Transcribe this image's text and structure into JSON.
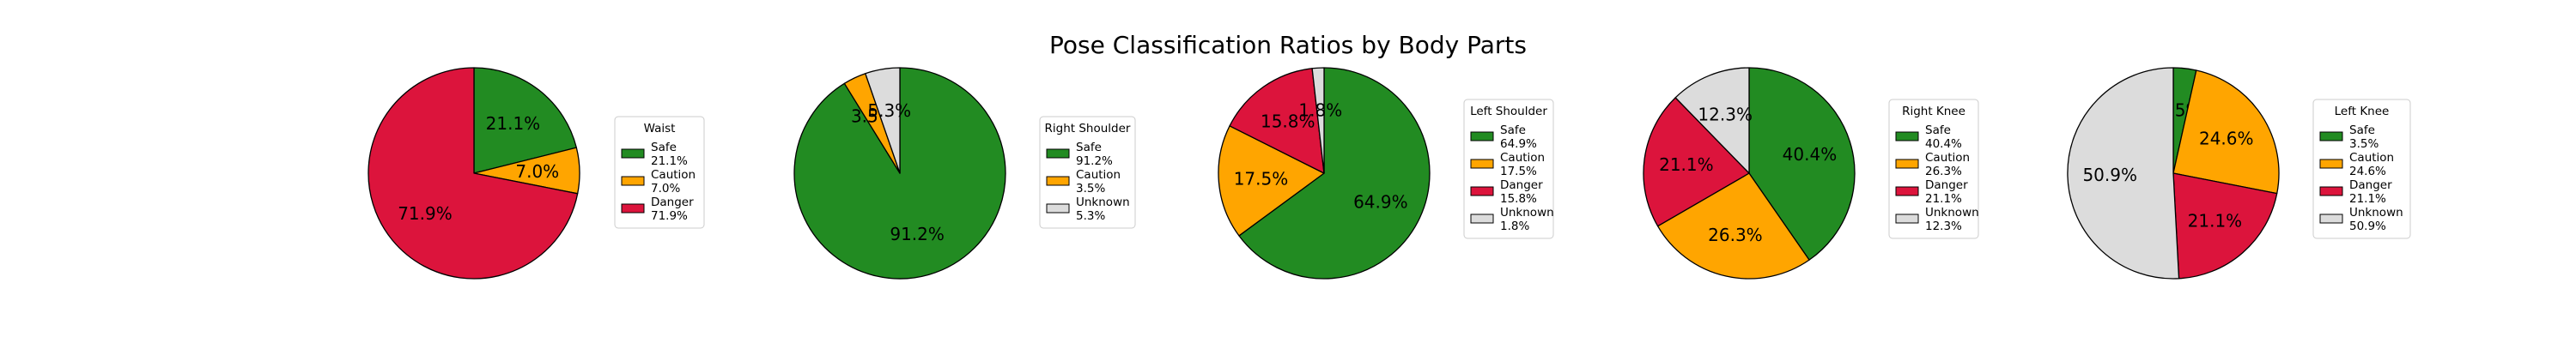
{
  "chart_data": {
    "type": "pie",
    "title": "Pose Classification Ratios by Body Parts",
    "colors": {
      "Safe": "#228b22",
      "Caution": "#ffa500",
      "Danger": "#dc143c",
      "Unknown": "#dcdcdc"
    },
    "start_angle_deg": 90,
    "direction": "clockwise",
    "charts": [
      {
        "name": "Waist",
        "slices": [
          {
            "label": "Safe",
            "value": 21.1,
            "pct_text": "21.1%"
          },
          {
            "label": "Caution",
            "value": 7.0,
            "pct_text": "7.0%"
          },
          {
            "label": "Danger",
            "value": 71.9,
            "pct_text": "71.9%"
          }
        ]
      },
      {
        "name": "Right Shoulder",
        "slices": [
          {
            "label": "Safe",
            "value": 91.2,
            "pct_text": "91.2%"
          },
          {
            "label": "Caution",
            "value": 3.5,
            "pct_text": "3.5%"
          },
          {
            "label": "Unknown",
            "value": 5.3,
            "pct_text": "5.3%"
          }
        ]
      },
      {
        "name": "Left Shoulder",
        "slices": [
          {
            "label": "Safe",
            "value": 64.9,
            "pct_text": "64.9%"
          },
          {
            "label": "Caution",
            "value": 17.5,
            "pct_text": "17.5%"
          },
          {
            "label": "Danger",
            "value": 15.8,
            "pct_text": "15.8%"
          },
          {
            "label": "Unknown",
            "value": 1.8,
            "pct_text": "1.8%"
          }
        ]
      },
      {
        "name": "Right Knee",
        "slices": [
          {
            "label": "Safe",
            "value": 40.4,
            "pct_text": "40.4%"
          },
          {
            "label": "Caution",
            "value": 26.3,
            "pct_text": "26.3%"
          },
          {
            "label": "Danger",
            "value": 21.1,
            "pct_text": "21.1%"
          },
          {
            "label": "Unknown",
            "value": 12.3,
            "pct_text": "12.3%"
          }
        ]
      },
      {
        "name": "Left Knee",
        "slices": [
          {
            "label": "Safe",
            "value": 3.5,
            "pct_text": "3.5%"
          },
          {
            "label": "Caution",
            "value": 24.6,
            "pct_text": "24.6%"
          },
          {
            "label": "Danger",
            "value": 21.1,
            "pct_text": "21.1%"
          },
          {
            "label": "Unknown",
            "value": 50.9,
            "pct_text": "50.9%"
          }
        ]
      }
    ]
  }
}
